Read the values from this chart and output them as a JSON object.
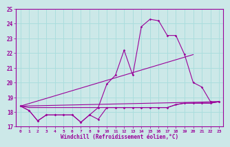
{
  "title": "",
  "xlabel": "Windchill (Refroidissement éolien,°C)",
  "bg_color": "#cce8e8",
  "line_color": "#990099",
  "grid_color": "#aadddd",
  "xlim": [
    -0.5,
    23.5
  ],
  "ylim": [
    17,
    25
  ],
  "yticks": [
    17,
    18,
    19,
    20,
    21,
    22,
    23,
    24,
    25
  ],
  "xticks": [
    0,
    1,
    2,
    3,
    4,
    5,
    6,
    7,
    8,
    9,
    10,
    11,
    12,
    13,
    14,
    15,
    16,
    17,
    18,
    19,
    20,
    21,
    22,
    23
  ],
  "series": [
    {
      "comment": "nearly flat windchill line at ~18.3",
      "x": [
        0,
        1,
        2,
        3,
        4,
        5,
        6,
        7,
        8,
        9,
        10,
        11,
        12,
        13,
        14,
        15,
        16,
        17,
        18,
        19,
        20,
        21,
        22,
        23
      ],
      "y": [
        18.4,
        18.3,
        18.3,
        18.3,
        18.3,
        18.3,
        18.3,
        18.3,
        18.3,
        18.3,
        18.3,
        18.3,
        18.3,
        18.3,
        18.3,
        18.3,
        18.3,
        18.3,
        18.5,
        18.6,
        18.6,
        18.6,
        18.6,
        18.7
      ],
      "marker": false
    },
    {
      "comment": "jagged low line with dips",
      "x": [
        0,
        1,
        2,
        3,
        4,
        5,
        6,
        7,
        8,
        9,
        10,
        11,
        12,
        13,
        14,
        15,
        16,
        17,
        18,
        19,
        20,
        21,
        22,
        23
      ],
      "y": [
        18.4,
        18.1,
        17.4,
        17.8,
        17.8,
        17.8,
        17.8,
        17.3,
        17.8,
        17.5,
        18.3,
        18.3,
        18.3,
        18.3,
        18.3,
        18.3,
        18.3,
        18.3,
        18.5,
        18.6,
        18.6,
        18.6,
        18.6,
        18.7
      ],
      "marker": true
    },
    {
      "comment": "peaked temperature curve",
      "x": [
        0,
        1,
        2,
        3,
        4,
        5,
        6,
        7,
        8,
        9,
        10,
        11,
        12,
        13,
        14,
        15,
        16,
        17,
        18,
        19,
        20,
        21,
        22,
        23
      ],
      "y": [
        18.4,
        18.1,
        17.4,
        17.8,
        17.8,
        17.8,
        17.8,
        17.3,
        17.8,
        18.3,
        19.9,
        20.5,
        22.2,
        20.5,
        23.8,
        24.3,
        24.2,
        23.2,
        23.2,
        21.9,
        20.0,
        19.7,
        18.7,
        18.7
      ],
      "marker": true
    },
    {
      "comment": "diagonal straight line trend 1 - from x=0 to x=23",
      "x": [
        0,
        23
      ],
      "y": [
        18.4,
        18.7
      ],
      "marker": false
    },
    {
      "comment": "diagonal straight line trend 2 - from x=0 to x=20",
      "x": [
        0,
        20
      ],
      "y": [
        18.4,
        21.9
      ],
      "marker": false
    }
  ]
}
